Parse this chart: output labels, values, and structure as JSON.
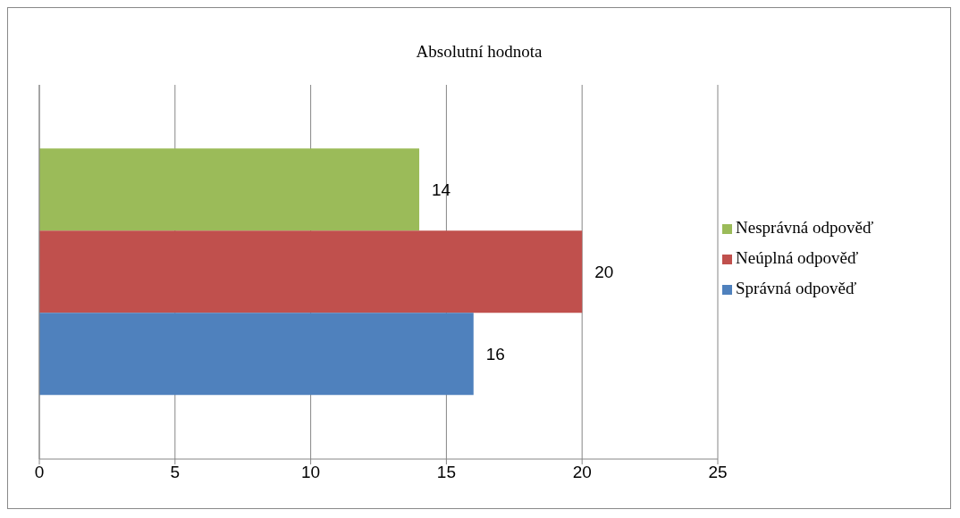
{
  "chart_data": {
    "type": "bar",
    "orientation": "horizontal",
    "title": "Absolutní hodnota",
    "categories": [
      null
    ],
    "series": [
      {
        "name": "Správná odpověď",
        "color": "#4f81bd",
        "values": [
          16
        ]
      },
      {
        "name": "Neúplná odpověď",
        "color": "#c0504d",
        "values": [
          20
        ]
      },
      {
        "name": "Nesprávná odpověď",
        "color": "#9bbb59",
        "values": [
          14
        ]
      }
    ],
    "xlim": [
      0,
      25
    ],
    "xticks": [
      0,
      5,
      10,
      15,
      20,
      25
    ],
    "grid": "x",
    "legend": "right",
    "data_labels": true
  }
}
